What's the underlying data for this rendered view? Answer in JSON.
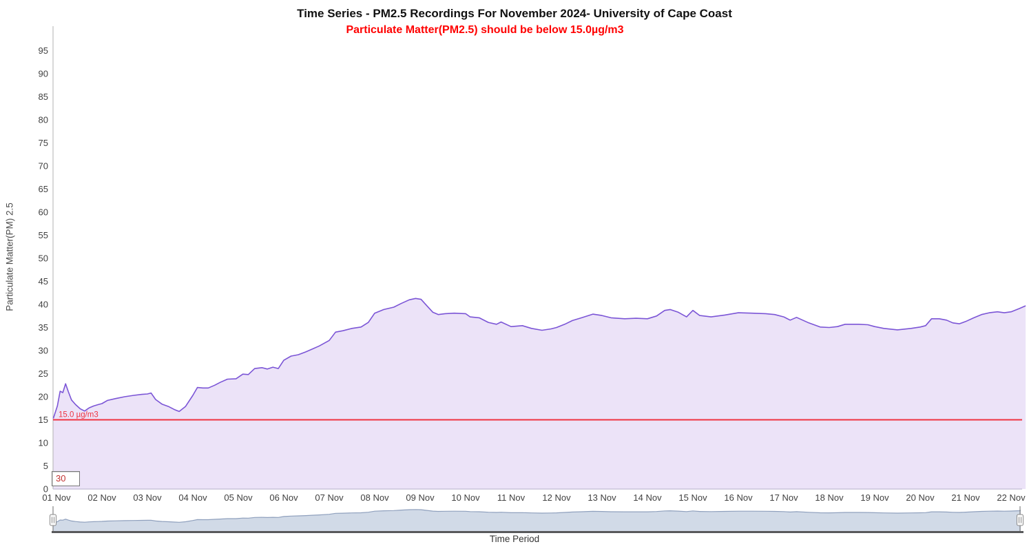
{
  "chart_data": {
    "type": "area",
    "title": "Time Series - PM2.5 Recordings For November 2024- University of Cape Coast",
    "subtitle": "Particulate Matter(PM2.5) should be below 15.0µg/m3",
    "x_axis": {
      "title": "Time Period",
      "labels": [
        "01 Nov",
        "02 Nov",
        "03 Nov",
        "04 Nov",
        "05 Nov",
        "06 Nov",
        "07 Nov",
        "08 Nov",
        "09 Nov",
        "10 Nov",
        "11 Nov",
        "12 Nov",
        "13 Nov",
        "14 Nov",
        "15 Nov",
        "16 Nov",
        "17 Nov",
        "18 Nov",
        "19 Nov",
        "20 Nov",
        "21 Nov",
        "22 Nov"
      ]
    },
    "y_axis": {
      "title": "Particulate Matter(PM) 2.5",
      "min": 0,
      "max": 95,
      "tick_interval": 5
    },
    "plot_line": {
      "value": 15.0,
      "label": "15.0 µg/m3",
      "color": "#ef3340"
    },
    "legend": "none",
    "grid": "off",
    "series": [
      {
        "name": "PM2.5",
        "type": "area",
        "line_color": "#7b55d6",
        "fill_color": "#ece3f8",
        "x_unit": "days from 01 Nov 2024",
        "points": [
          [
            -0.07,
            15.3
          ],
          [
            0.02,
            18.0
          ],
          [
            0.08,
            21.2
          ],
          [
            0.14,
            20.9
          ],
          [
            0.2,
            22.8
          ],
          [
            0.26,
            21.1
          ],
          [
            0.33,
            19.3
          ],
          [
            0.42,
            18.3
          ],
          [
            0.52,
            17.4
          ],
          [
            0.62,
            16.9
          ],
          [
            0.72,
            17.6
          ],
          [
            0.82,
            18.0
          ],
          [
            0.92,
            18.3
          ],
          [
            1.0,
            18.5
          ],
          [
            1.12,
            19.2
          ],
          [
            1.3,
            19.6
          ],
          [
            1.5,
            20.0
          ],
          [
            1.7,
            20.3
          ],
          [
            1.88,
            20.5
          ],
          [
            2.0,
            20.6
          ],
          [
            2.08,
            20.8
          ],
          [
            2.18,
            19.4
          ],
          [
            2.32,
            18.4
          ],
          [
            2.46,
            17.9
          ],
          [
            2.6,
            17.2
          ],
          [
            2.7,
            16.8
          ],
          [
            2.84,
            17.9
          ],
          [
            3.0,
            20.3
          ],
          [
            3.1,
            22.0
          ],
          [
            3.22,
            21.9
          ],
          [
            3.34,
            21.9
          ],
          [
            3.48,
            22.5
          ],
          [
            3.6,
            23.1
          ],
          [
            3.76,
            23.8
          ],
          [
            3.95,
            23.9
          ],
          [
            4.1,
            24.9
          ],
          [
            4.22,
            24.8
          ],
          [
            4.36,
            26.1
          ],
          [
            4.52,
            26.3
          ],
          [
            4.64,
            26.0
          ],
          [
            4.76,
            26.4
          ],
          [
            4.88,
            26.1
          ],
          [
            5.0,
            27.9
          ],
          [
            5.16,
            28.8
          ],
          [
            5.32,
            29.1
          ],
          [
            5.48,
            29.7
          ],
          [
            5.62,
            30.3
          ],
          [
            5.78,
            31.0
          ],
          [
            6.0,
            32.2
          ],
          [
            6.14,
            34.0
          ],
          [
            6.3,
            34.3
          ],
          [
            6.5,
            34.8
          ],
          [
            6.7,
            35.1
          ],
          [
            6.86,
            36.1
          ],
          [
            7.0,
            38.1
          ],
          [
            7.2,
            38.9
          ],
          [
            7.42,
            39.4
          ],
          [
            7.58,
            40.2
          ],
          [
            7.76,
            41.0
          ],
          [
            7.9,
            41.3
          ],
          [
            8.02,
            41.1
          ],
          [
            8.14,
            39.8
          ],
          [
            8.28,
            38.3
          ],
          [
            8.4,
            37.8
          ],
          [
            8.55,
            38.0
          ],
          [
            8.75,
            38.1
          ],
          [
            9.0,
            38.0
          ],
          [
            9.1,
            37.3
          ],
          [
            9.3,
            37.1
          ],
          [
            9.5,
            36.1
          ],
          [
            9.68,
            35.7
          ],
          [
            9.78,
            36.2
          ],
          [
            10.0,
            35.2
          ],
          [
            10.25,
            35.4
          ],
          [
            10.45,
            34.8
          ],
          [
            10.68,
            34.4
          ],
          [
            10.88,
            34.7
          ],
          [
            11.0,
            35.0
          ],
          [
            11.18,
            35.7
          ],
          [
            11.35,
            36.5
          ],
          [
            11.55,
            37.1
          ],
          [
            11.8,
            37.9
          ],
          [
            12.0,
            37.6
          ],
          [
            12.2,
            37.1
          ],
          [
            12.5,
            36.9
          ],
          [
            12.75,
            37.0
          ],
          [
            13.0,
            36.9
          ],
          [
            13.2,
            37.5
          ],
          [
            13.38,
            38.7
          ],
          [
            13.5,
            38.9
          ],
          [
            13.68,
            38.3
          ],
          [
            13.86,
            37.3
          ],
          [
            14.0,
            38.7
          ],
          [
            14.15,
            37.6
          ],
          [
            14.4,
            37.3
          ],
          [
            14.7,
            37.7
          ],
          [
            15.0,
            38.2
          ],
          [
            15.3,
            38.1
          ],
          [
            15.6,
            38.0
          ],
          [
            15.8,
            37.8
          ],
          [
            16.0,
            37.3
          ],
          [
            16.14,
            36.6
          ],
          [
            16.28,
            37.2
          ],
          [
            16.55,
            36.0
          ],
          [
            16.8,
            35.1
          ],
          [
            17.0,
            35.0
          ],
          [
            17.18,
            35.2
          ],
          [
            17.35,
            35.7
          ],
          [
            17.65,
            35.7
          ],
          [
            17.85,
            35.6
          ],
          [
            18.0,
            35.2
          ],
          [
            18.2,
            34.8
          ],
          [
            18.5,
            34.5
          ],
          [
            18.8,
            34.8
          ],
          [
            19.0,
            35.1
          ],
          [
            19.12,
            35.4
          ],
          [
            19.25,
            36.9
          ],
          [
            19.42,
            36.9
          ],
          [
            19.58,
            36.6
          ],
          [
            19.72,
            36.0
          ],
          [
            19.86,
            35.8
          ],
          [
            20.0,
            36.3
          ],
          [
            20.18,
            37.1
          ],
          [
            20.35,
            37.8
          ],
          [
            20.52,
            38.2
          ],
          [
            20.7,
            38.4
          ],
          [
            20.85,
            38.2
          ],
          [
            21.0,
            38.4
          ],
          [
            21.18,
            39.1
          ],
          [
            21.32,
            39.7
          ]
        ]
      }
    ],
    "navigator": {
      "fill_color": "#d1dae7",
      "line_color": "#8fa0bd",
      "baseline_color": "#58595b"
    }
  },
  "ui": {
    "threshold_box_value": "30"
  }
}
